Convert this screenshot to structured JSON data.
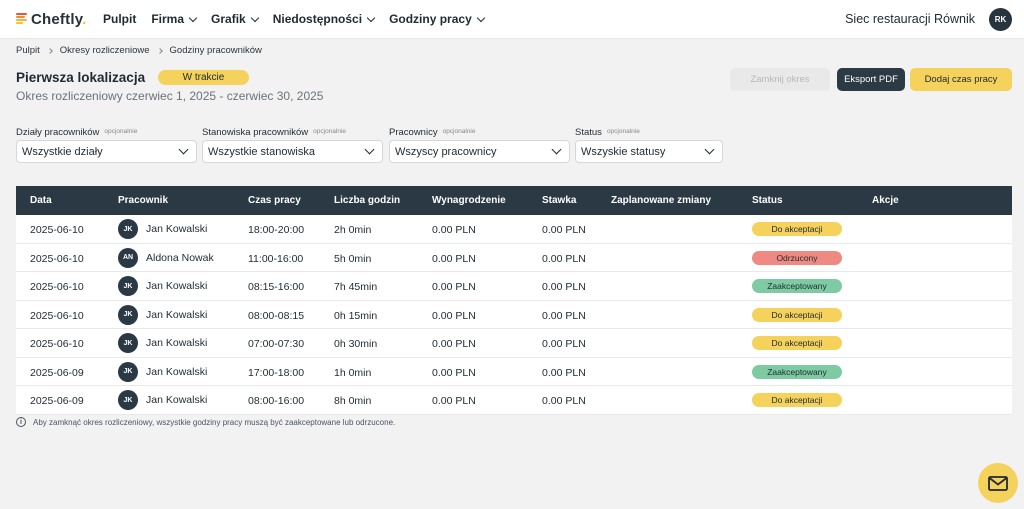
{
  "nav": {
    "logo_text": "Cheftly",
    "logo_dot": ".",
    "items": [
      {
        "label": "Pulpit",
        "dropdown": false
      },
      {
        "label": "Firma",
        "dropdown": true
      },
      {
        "label": "Grafik",
        "dropdown": true
      },
      {
        "label": "Niedostępności",
        "dropdown": true
      },
      {
        "label": "Godziny pracy",
        "dropdown": true
      }
    ],
    "org_name": "Siec restauracji Równik",
    "user_initials": "RK"
  },
  "breadcrumb": [
    "Pulpit",
    "Okresy rozliczeniowe",
    "Godziny pracowników"
  ],
  "header": {
    "title": "Pierwsza lokalizacja",
    "status_badge": "W trakcie",
    "subtitle": "Okres rozliczeniowy czerwiec 1, 2025 - czerwiec 30, 2025"
  },
  "actions": {
    "close_period": "Zamknij okres",
    "export_pdf": "Eksport PDF",
    "add_hours": "Dodaj czas pracy"
  },
  "filters": [
    {
      "label": "Działy pracowników",
      "optional": "opcjonalnie",
      "value": "Wszystkie działy"
    },
    {
      "label": "Stanowiska pracowników",
      "optional": "opcjonalnie",
      "value": "Wszystkie stanowiska"
    },
    {
      "label": "Pracownicy",
      "optional": "opcjonalnie",
      "value": "Wszyscy pracownicy"
    },
    {
      "label": "Status",
      "optional": "opcjonalnie",
      "value": "Wszyskie statusy"
    }
  ],
  "table": {
    "columns": [
      "Data",
      "Pracownik",
      "Czas pracy",
      "Liczba godzin",
      "Wynagrodzenie",
      "Stawka",
      "Zaplanowane zmiany",
      "Status",
      "Akcje"
    ],
    "rows": [
      {
        "date": "2025-06-10",
        "initials": "JK",
        "employee": "Jan Kowalski",
        "time": "18:00-20:00",
        "hours": "2h 0min",
        "pay": "0.00 PLN",
        "rate": "0.00 PLN",
        "status": "Do akceptacji",
        "status_color": "#f5d25c"
      },
      {
        "date": "2025-06-10",
        "initials": "AN",
        "employee": "Aldona Nowak",
        "time": "11:00-16:00",
        "hours": "5h 0min",
        "pay": "0.00 PLN",
        "rate": "0.00 PLN",
        "status": "Odrzucony",
        "status_color": "#ee8a82"
      },
      {
        "date": "2025-06-10",
        "initials": "JK",
        "employee": "Jan Kowalski",
        "time": "08:15-16:00",
        "hours": "7h 45min",
        "pay": "0.00 PLN",
        "rate": "0.00 PLN",
        "status": "Zaakceptowany",
        "status_color": "#7ecba3"
      },
      {
        "date": "2025-06-10",
        "initials": "JK",
        "employee": "Jan Kowalski",
        "time": "08:00-08:15",
        "hours": "0h 15min",
        "pay": "0.00 PLN",
        "rate": "0.00 PLN",
        "status": "Do akceptacji",
        "status_color": "#f5d25c"
      },
      {
        "date": "2025-06-10",
        "initials": "JK",
        "employee": "Jan Kowalski",
        "time": "07:00-07:30",
        "hours": "0h 30min",
        "pay": "0.00 PLN",
        "rate": "0.00 PLN",
        "status": "Do akceptacji",
        "status_color": "#f5d25c"
      },
      {
        "date": "2025-06-09",
        "initials": "JK",
        "employee": "Jan Kowalski",
        "time": "17:00-18:00",
        "hours": "1h 0min",
        "pay": "0.00 PLN",
        "rate": "0.00 PLN",
        "status": "Zaakceptowany",
        "status_color": "#7ecba3"
      },
      {
        "date": "2025-06-09",
        "initials": "JK",
        "employee": "Jan Kowalski",
        "time": "08:00-16:00",
        "hours": "8h 0min",
        "pay": "0.00 PLN",
        "rate": "0.00 PLN",
        "status": "Do akceptacji",
        "status_color": "#f5d25c"
      }
    ]
  },
  "note": "Aby zamknąć okres rozliczeniowy, wszystkie godziny pracy muszą być zaakceptowane lub odrzucone.",
  "icons": {
    "info": "info-icon",
    "fab": "mail-icon"
  },
  "colors": {
    "brand_dark": "#2b3945",
    "accent_yellow": "#f5d25c"
  }
}
